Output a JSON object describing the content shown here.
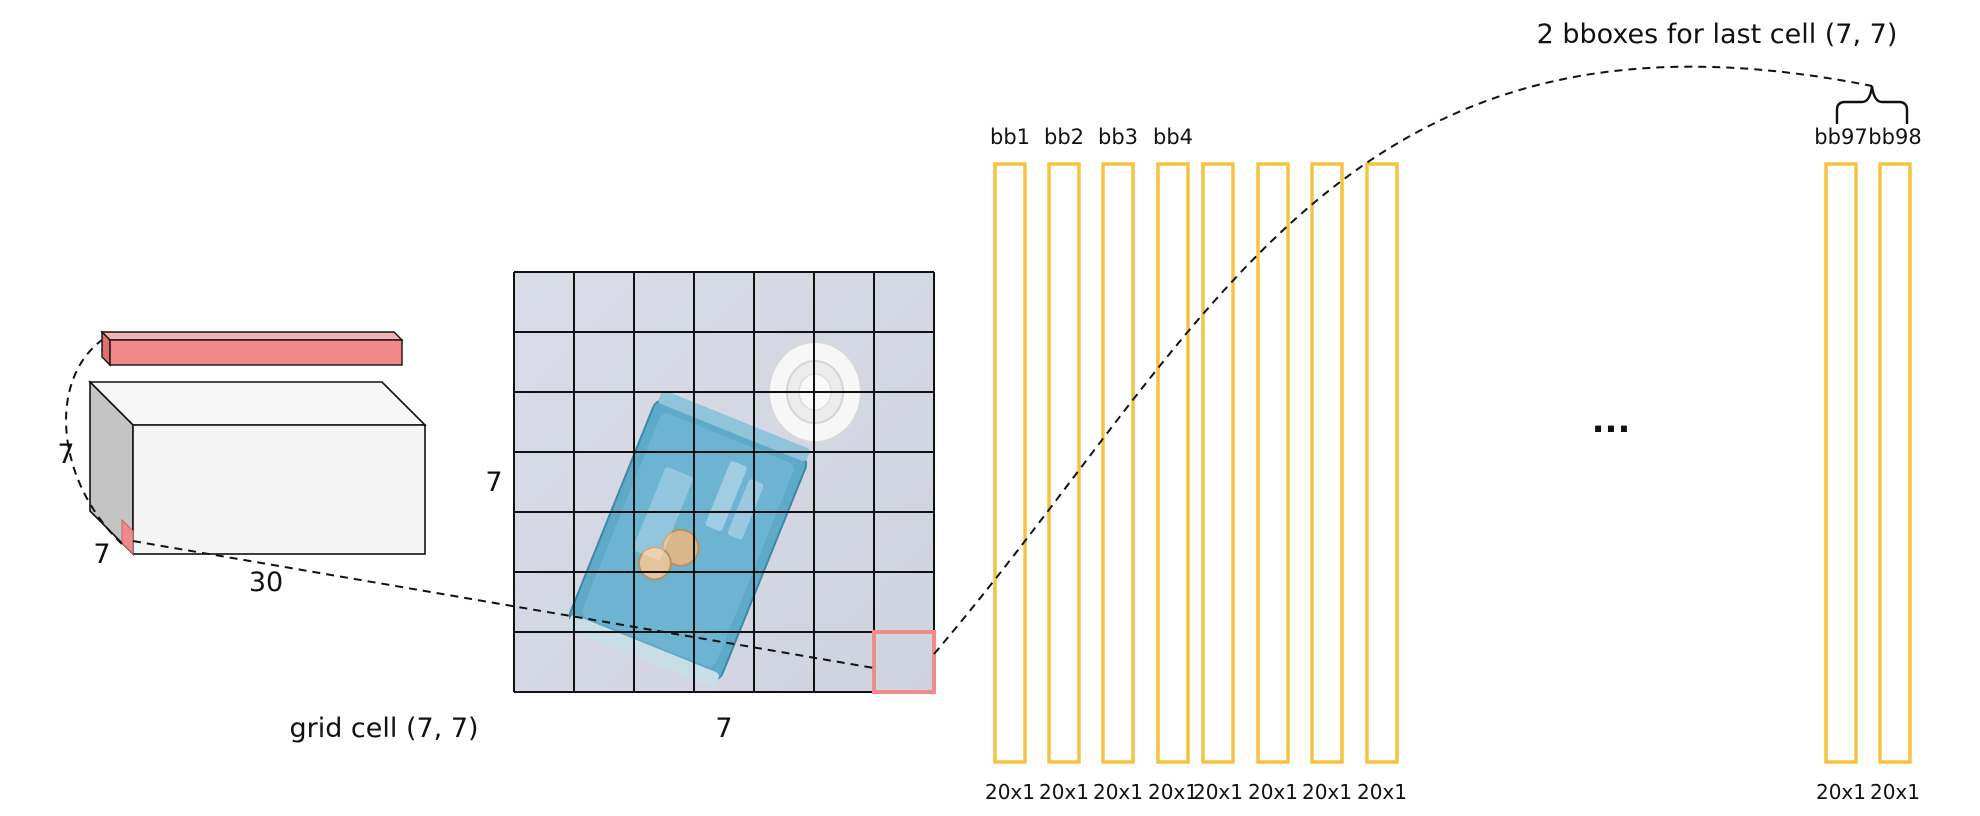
{
  "tensor": {
    "height_label": "7",
    "width_label": "7",
    "depth_label": "30"
  },
  "grid": {
    "rows_label": "7",
    "cols_label": "7",
    "rows": 7,
    "cols": 7,
    "cell_caption": "grid cell (7, 7)"
  },
  "bboxes": {
    "top_labels": [
      "bb1",
      "bb2",
      "bb3",
      "bb4"
    ],
    "last_labels": [
      "bb97",
      "bb98"
    ],
    "shape_labels": [
      "20x1",
      "20x1",
      "20x1",
      "20x1",
      "20x1",
      "20x1",
      "20x1",
      "20x1"
    ],
    "last_shape_labels": [
      "20x1",
      "20x1"
    ],
    "ellipsis": "...",
    "brace_caption": "2 bboxes for last cell (7, 7)"
  },
  "colors": {
    "vector_fill": "#f08a8a",
    "grid_highlight": "#ef8b8b",
    "bbox_stroke": "#f5c242",
    "cuboid_front": "#f4f4f4",
    "cuboid_side": "#c4c4c4"
  }
}
